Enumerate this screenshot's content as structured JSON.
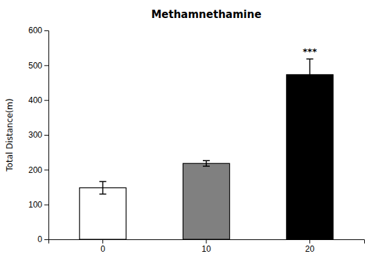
{
  "chart_data": {
    "type": "bar",
    "title": "Methamnethamine",
    "ylabel": "Total Distance(m)",
    "categories": [
      "0",
      "10",
      "20"
    ],
    "values": [
      148,
      218,
      473
    ],
    "errors": [
      18,
      8,
      45
    ],
    "colors": [
      "#ffffff",
      "#808080",
      "#000000"
    ],
    "significance": [
      null,
      null,
      "***"
    ],
    "ylim": [
      0,
      600
    ],
    "yticks": [
      0,
      100,
      200,
      300,
      400,
      500,
      600
    ],
    "grid": false
  }
}
